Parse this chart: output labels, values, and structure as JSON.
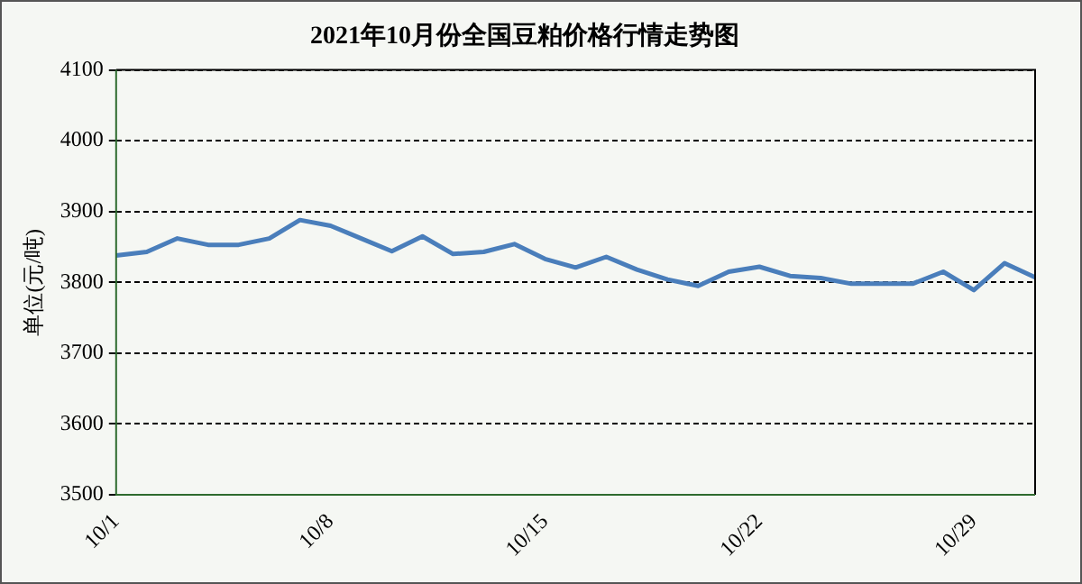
{
  "chart_data": {
    "type": "line",
    "title": "2021年10月份全国豆粕价格行情走势图",
    "ylabel": "单位(元/吨)",
    "categories": [
      "10/1",
      null,
      null,
      null,
      null,
      null,
      null,
      "10/8",
      null,
      null,
      null,
      null,
      null,
      null,
      "10/15",
      null,
      null,
      null,
      null,
      null,
      null,
      "10/22",
      null,
      null,
      null,
      null,
      null,
      null,
      "10/29",
      null,
      null
    ],
    "series": [
      {
        "color": "#4a7ebb",
        "values": [
          3838,
          3843,
          3862,
          3853,
          3853,
          3862,
          3888,
          3880,
          3862,
          3844,
          3865,
          3840,
          3843,
          3854,
          3833,
          3821,
          3836,
          3818,
          3804,
          3795,
          3815,
          3822,
          3809,
          3806,
          3798,
          3798,
          3798,
          3815,
          3789,
          3827,
          3807
        ]
      }
    ],
    "ylim": [
      3500,
      4100
    ],
    "yticks": [
      3500,
      3600,
      3700,
      3800,
      3900,
      4000,
      4100
    ],
    "grid": "y",
    "legend": false,
    "marker": "none",
    "line_style": "solid"
  }
}
